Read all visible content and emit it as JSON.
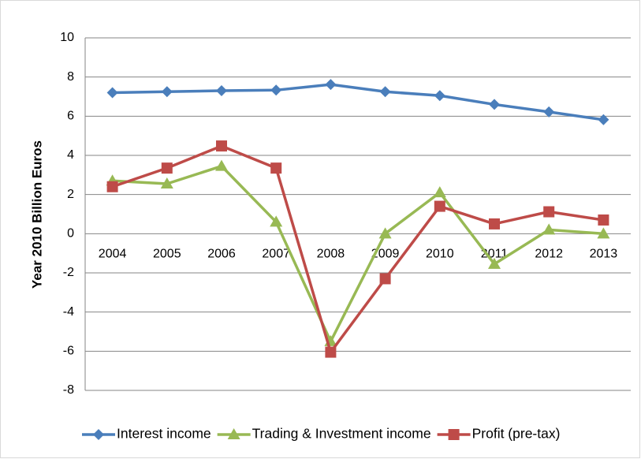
{
  "chart_data": {
    "type": "line",
    "y_label": "Year 2010 Billion Euros",
    "categories": [
      "2004",
      "2005",
      "2006",
      "2007",
      "2008",
      "2009",
      "2010",
      "2011",
      "2012",
      "2013"
    ],
    "series": [
      {
        "name": "Interest income",
        "color": "#4a7ebb",
        "marker": "diamond",
        "values": [
          7.2,
          7.25,
          7.3,
          7.33,
          7.62,
          7.25,
          7.05,
          6.6,
          6.22,
          5.82
        ]
      },
      {
        "name": "Trading & Investment income",
        "color": "#98b954",
        "marker": "triangle",
        "values": [
          2.7,
          2.55,
          3.45,
          0.6,
          -5.5,
          0.0,
          2.1,
          -1.55,
          0.2,
          0.0
        ]
      },
      {
        "name": "Profit (pre-tax)",
        "color": "#be4b48",
        "marker": "square",
        "values": [
          2.4,
          3.35,
          4.48,
          3.35,
          -6.05,
          -2.3,
          1.4,
          0.5,
          1.12,
          0.7
        ]
      }
    ],
    "ylim": [
      -8,
      10
    ],
    "yticks": [
      -8,
      -6,
      -4,
      -2,
      0,
      2,
      4,
      6,
      8,
      10
    ],
    "grid": true,
    "legend": "bottom"
  }
}
